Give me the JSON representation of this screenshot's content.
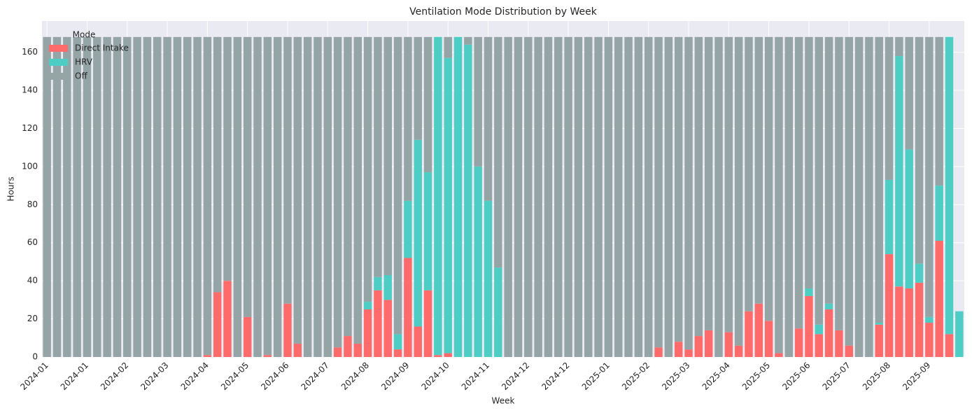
{
  "chart_data": {
    "type": "stacked_bar",
    "title": "Ventilation Mode Distribution by Week",
    "x_label": "Week",
    "y_label": "Hours",
    "legend_title": "Mode",
    "legend_position": "upper left",
    "grid": true,
    "ylim": [
      0,
      176.4
    ],
    "yticks": [
      0,
      20,
      40,
      60,
      80,
      100,
      120,
      140,
      160
    ],
    "categories": [
      "2024-01",
      null,
      null,
      null,
      "2024-01",
      null,
      null,
      null,
      "2024-02",
      null,
      null,
      null,
      "2024-03",
      null,
      null,
      null,
      "2024-04",
      null,
      null,
      null,
      "2024-05",
      null,
      null,
      null,
      "2024-06",
      null,
      null,
      null,
      "2024-07",
      null,
      null,
      null,
      "2024-08",
      null,
      null,
      null,
      "2024-09",
      null,
      null,
      null,
      "2024-10",
      null,
      null,
      null,
      "2024-11",
      null,
      null,
      null,
      "2024-12",
      null,
      null,
      null,
      "2024-12",
      null,
      null,
      null,
      "2025-01",
      null,
      null,
      null,
      "2025-02",
      null,
      null,
      null,
      "2025-03",
      null,
      null,
      null,
      "2025-04",
      null,
      null,
      null,
      "2025-05",
      null,
      null,
      null,
      "2025-06",
      null,
      null,
      null,
      "2025-07",
      null,
      null,
      null,
      "2025-08",
      null,
      null,
      null,
      "2025-09",
      null,
      null,
      null
    ],
    "series": [
      {
        "name": "Direct Intake",
        "color": "#ff6b6b",
        "values": [
          0,
          0,
          0,
          0,
          0,
          0,
          0,
          0,
          0,
          0,
          0,
          0,
          0,
          0,
          0,
          0,
          1,
          34,
          40,
          0,
          21,
          0,
          1,
          0,
          28,
          7,
          0,
          0,
          0,
          5,
          11,
          7,
          25,
          35,
          30,
          4,
          52,
          16,
          35,
          1,
          2,
          0,
          0,
          0,
          0,
          0,
          0,
          0,
          0,
          0,
          0,
          0,
          0,
          0,
          0,
          0,
          0,
          0,
          0,
          0,
          0,
          5,
          0,
          8,
          4,
          11,
          14,
          0,
          13,
          6,
          24,
          28,
          19,
          2,
          0,
          15,
          32,
          12,
          25,
          14,
          6,
          0,
          0,
          17,
          54,
          37,
          36,
          39,
          18,
          61,
          12,
          0
        ]
      },
      {
        "name": "HRV",
        "color": "#4ecdc4",
        "values": [
          0,
          0,
          0,
          0,
          0,
          0,
          0,
          0,
          0,
          0,
          0,
          0,
          0,
          0,
          0,
          0,
          0,
          0,
          0,
          0,
          0,
          0,
          0,
          0,
          0,
          0,
          0,
          0,
          0,
          0,
          0,
          0,
          4,
          7,
          13,
          8,
          30,
          98,
          62,
          167,
          155,
          168,
          164,
          100,
          82,
          47,
          0,
          0,
          0,
          0,
          0,
          0,
          0,
          0,
          0,
          0,
          0,
          0,
          0,
          0,
          0,
          0,
          0,
          0,
          0,
          0,
          0,
          0,
          0,
          0,
          0,
          0,
          0,
          0,
          0,
          0,
          4,
          5,
          3,
          0,
          0,
          0,
          0,
          1,
          39,
          121,
          73,
          10,
          3,
          29,
          156,
          24
        ]
      },
      {
        "name": "Off",
        "color": "#95a5a6",
        "values": [
          168,
          168,
          168,
          168,
          168,
          168,
          168,
          168,
          168,
          168,
          168,
          168,
          168,
          168,
          168,
          168,
          167,
          134,
          128,
          168,
          147,
          168,
          167,
          168,
          140,
          161,
          168,
          168,
          168,
          163,
          157,
          161,
          139,
          126,
          125,
          156,
          86,
          54,
          71,
          0,
          11,
          0,
          4,
          68,
          86,
          121,
          168,
          168,
          168,
          168,
          168,
          168,
          168,
          168,
          168,
          168,
          168,
          168,
          168,
          168,
          168,
          163,
          168,
          160,
          164,
          157,
          154,
          168,
          155,
          162,
          144,
          140,
          149,
          166,
          168,
          153,
          132,
          151,
          140,
          154,
          162,
          168,
          168,
          150,
          75,
          10,
          59,
          119,
          147,
          78,
          0,
          0
        ]
      }
    ]
  }
}
